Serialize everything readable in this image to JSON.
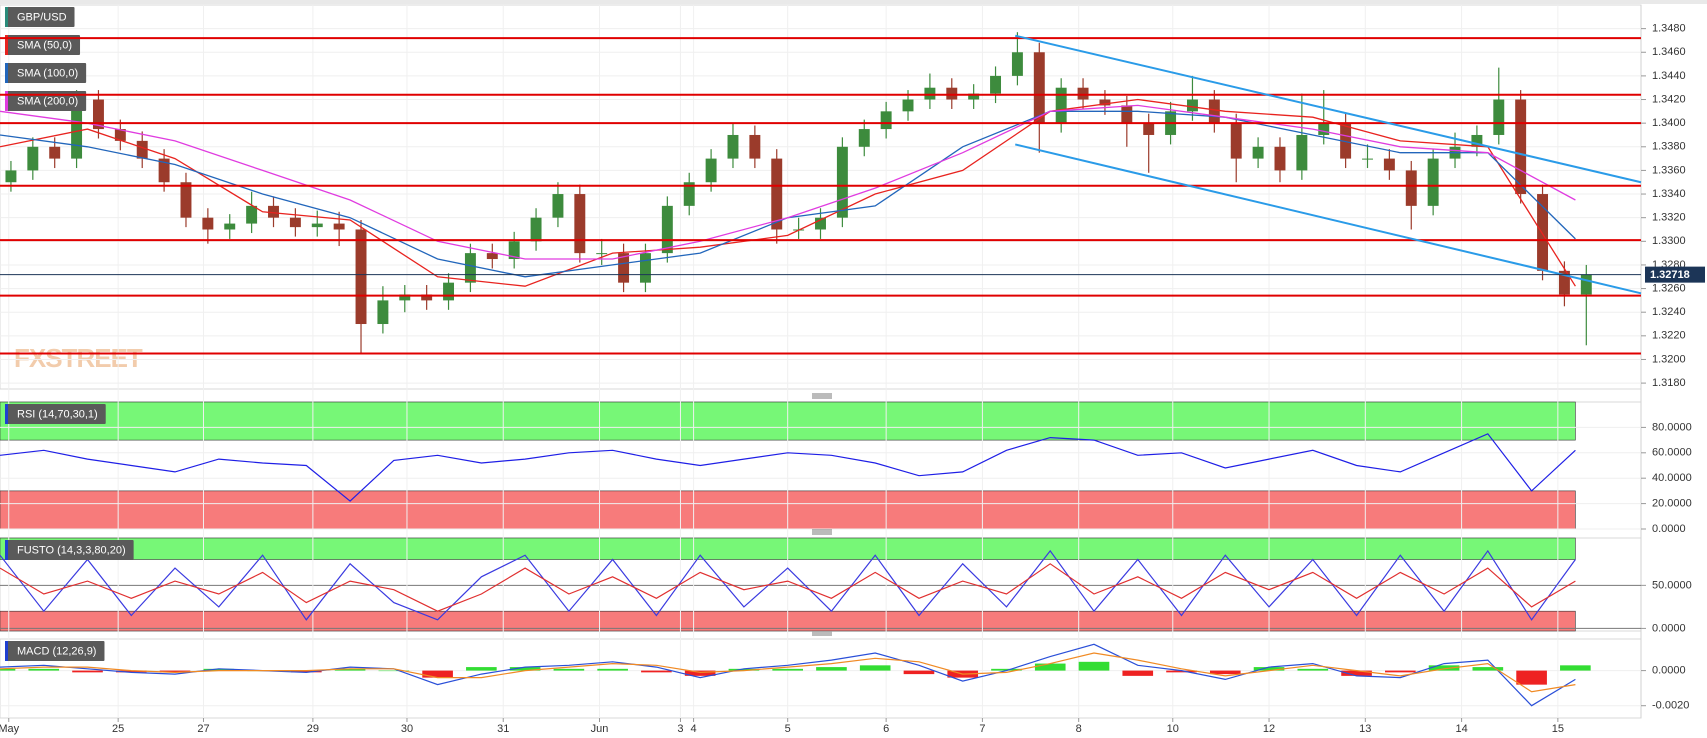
{
  "chart_data": [
    {
      "type": "candlestick",
      "title": "GBP/USD",
      "xlim": [
        0,
        75
      ],
      "ylim": [
        1.3175,
        1.35
      ],
      "yticks": [
        {
          "value": 1.318,
          "label": "1.3180"
        },
        {
          "value": 1.32,
          "label": "1.3200"
        },
        {
          "value": 1.322,
          "label": "1.3220"
        },
        {
          "value": 1.324,
          "label": "1.3240"
        },
        {
          "value": 1.326,
          "label": "1.3260"
        },
        {
          "value": 1.328,
          "label": "1.3280"
        },
        {
          "value": 1.33,
          "label": "1.3300"
        },
        {
          "value": 1.332,
          "label": "1.3320"
        },
        {
          "value": 1.334,
          "label": "1.3340"
        },
        {
          "value": 1.336,
          "label": "1.3360"
        },
        {
          "value": 1.338,
          "label": "1.3380"
        },
        {
          "value": 1.34,
          "label": "1.3400"
        },
        {
          "value": 1.342,
          "label": "1.3420"
        },
        {
          "value": 1.344,
          "label": "1.3440"
        },
        {
          "value": 1.346,
          "label": "1.3460"
        },
        {
          "value": 1.348,
          "label": "1.3480"
        }
      ],
      "up_color": "#3d8b3d",
      "down_color": "#9b3b2b",
      "ohlc": [
        [
          1.335,
          1.3368,
          1.3342,
          1.336
        ],
        [
          1.336,
          1.3388,
          1.3352,
          1.338
        ],
        [
          1.338,
          1.3388,
          1.3362,
          1.337
        ],
        [
          1.337,
          1.3428,
          1.3362,
          1.342
        ],
        [
          1.342,
          1.3428,
          1.3387,
          1.3395
        ],
        [
          1.3395,
          1.3403,
          1.3377,
          1.3385
        ],
        [
          1.3385,
          1.3393,
          1.3362,
          1.337
        ],
        [
          1.337,
          1.3378,
          1.3342,
          1.335
        ],
        [
          1.335,
          1.3358,
          1.3312,
          1.332
        ],
        [
          1.332,
          1.3328,
          1.3298,
          1.331
        ],
        [
          1.331,
          1.3323,
          1.3302,
          1.3315
        ],
        [
          1.3315,
          1.3342,
          1.3307,
          1.333
        ],
        [
          1.333,
          1.3338,
          1.3312,
          1.332
        ],
        [
          1.332,
          1.3328,
          1.3304,
          1.3312
        ],
        [
          1.3312,
          1.3326,
          1.3304,
          1.3315
        ],
        [
          1.3315,
          1.3325,
          1.3296,
          1.331
        ],
        [
          1.331,
          1.3318,
          1.3205,
          1.323
        ],
        [
          1.323,
          1.3262,
          1.3222,
          1.325
        ],
        [
          1.325,
          1.3263,
          1.324,
          1.3255
        ],
        [
          1.3255,
          1.3263,
          1.3242,
          1.325
        ],
        [
          1.325,
          1.3273,
          1.3242,
          1.3265
        ],
        [
          1.3265,
          1.3298,
          1.3257,
          1.329
        ],
        [
          1.329,
          1.3298,
          1.3277,
          1.3285
        ],
        [
          1.3285,
          1.3308,
          1.3277,
          1.33
        ],
        [
          1.33,
          1.3328,
          1.3292,
          1.332
        ],
        [
          1.332,
          1.335,
          1.3312,
          1.334
        ],
        [
          1.334,
          1.3348,
          1.3282,
          1.329
        ],
        [
          1.329,
          1.3302,
          1.328,
          1.329
        ],
        [
          1.329,
          1.3298,
          1.3257,
          1.3265
        ],
        [
          1.3265,
          1.3298,
          1.3257,
          1.329
        ],
        [
          1.329,
          1.3338,
          1.3282,
          1.333
        ],
        [
          1.333,
          1.3358,
          1.3322,
          1.335
        ],
        [
          1.335,
          1.3378,
          1.3342,
          1.337
        ],
        [
          1.337,
          1.34,
          1.3362,
          1.339
        ],
        [
          1.339,
          1.3398,
          1.3362,
          1.337
        ],
        [
          1.337,
          1.3378,
          1.3298,
          1.331
        ],
        [
          1.331,
          1.332,
          1.3302,
          1.331
        ],
        [
          1.331,
          1.3328,
          1.3302,
          1.332
        ],
        [
          1.332,
          1.3388,
          1.3312,
          1.338
        ],
        [
          1.338,
          1.3403,
          1.3372,
          1.3395
        ],
        [
          1.3395,
          1.3418,
          1.3387,
          1.341
        ],
        [
          1.341,
          1.3428,
          1.3402,
          1.342
        ],
        [
          1.342,
          1.3442,
          1.3412,
          1.343
        ],
        [
          1.343,
          1.3438,
          1.3412,
          1.342
        ],
        [
          1.342,
          1.3433,
          1.3412,
          1.3425
        ],
        [
          1.3425,
          1.3448,
          1.3417,
          1.344
        ],
        [
          1.344,
          1.3477,
          1.3432,
          1.346
        ],
        [
          1.346,
          1.3468,
          1.3375,
          1.34
        ],
        [
          1.34,
          1.3438,
          1.3392,
          1.343
        ],
        [
          1.343,
          1.3438,
          1.3412,
          1.342
        ],
        [
          1.342,
          1.3428,
          1.3407,
          1.3415
        ],
        [
          1.3415,
          1.3423,
          1.338,
          1.34
        ],
        [
          1.34,
          1.3408,
          1.3358,
          1.339
        ],
        [
          1.339,
          1.3418,
          1.3382,
          1.341
        ],
        [
          1.341,
          1.344,
          1.3402,
          1.342
        ],
        [
          1.342,
          1.3428,
          1.3392,
          1.34
        ],
        [
          1.34,
          1.3408,
          1.335,
          1.337
        ],
        [
          1.337,
          1.3388,
          1.3362,
          1.338
        ],
        [
          1.338,
          1.3388,
          1.335,
          1.336
        ],
        [
          1.336,
          1.3425,
          1.3352,
          1.339
        ],
        [
          1.339,
          1.3428,
          1.3382,
          1.34
        ],
        [
          1.34,
          1.3408,
          1.3362,
          1.337
        ],
        [
          1.337,
          1.3382,
          1.3362,
          1.337
        ],
        [
          1.337,
          1.3378,
          1.3352,
          1.336
        ],
        [
          1.336,
          1.3368,
          1.331,
          1.333
        ],
        [
          1.333,
          1.3378,
          1.3322,
          1.337
        ],
        [
          1.337,
          1.3392,
          1.3362,
          1.338
        ],
        [
          1.338,
          1.3398,
          1.3372,
          1.339
        ],
        [
          1.339,
          1.3447,
          1.3382,
          1.342
        ],
        [
          1.342,
          1.3428,
          1.3332,
          1.334
        ],
        [
          1.334,
          1.3348,
          1.3267,
          1.3275
        ],
        [
          1.3275,
          1.3283,
          1.3245,
          1.3255
        ],
        [
          1.3255,
          1.328,
          1.3212,
          1.3272
        ]
      ],
      "series": [
        {
          "name": "SMA (50,0)",
          "color": "#e8231f",
          "x": [
            0,
            4,
            8,
            12,
            16,
            20,
            24,
            28,
            32,
            36,
            40,
            44,
            48,
            52,
            56,
            60,
            64,
            68,
            72
          ],
          "values": [
            1.338,
            1.3395,
            1.337,
            1.3325,
            1.3318,
            1.327,
            1.3262,
            1.329,
            1.3295,
            1.3305,
            1.334,
            1.336,
            1.341,
            1.342,
            1.341,
            1.3405,
            1.3385,
            1.338,
            1.3262
          ]
        },
        {
          "name": "SMA (100,0)",
          "color": "#2266bb",
          "x": [
            0,
            4,
            8,
            12,
            16,
            20,
            24,
            28,
            32,
            36,
            40,
            44,
            48,
            52,
            56,
            60,
            64,
            68,
            72
          ],
          "values": [
            1.339,
            1.338,
            1.3365,
            1.334,
            1.332,
            1.3285,
            1.327,
            1.328,
            1.329,
            1.332,
            1.333,
            1.338,
            1.341,
            1.341,
            1.3405,
            1.339,
            1.3375,
            1.3375,
            1.3302
          ]
        },
        {
          "name": "SMA (200,0)",
          "color": "#e03ce0",
          "x": [
            0,
            4,
            8,
            12,
            16,
            20,
            24,
            28,
            32,
            36,
            40,
            44,
            48,
            52,
            56,
            60,
            64,
            68,
            72
          ],
          "values": [
            1.341,
            1.34,
            1.3385,
            1.336,
            1.3335,
            1.33,
            1.3285,
            1.3285,
            1.33,
            1.332,
            1.3345,
            1.3375,
            1.341,
            1.3415,
            1.3405,
            1.3395,
            1.338,
            1.3375,
            1.3335
          ]
        }
      ],
      "levels": [
        1.3472,
        1.3424,
        1.34,
        1.3347,
        1.3301,
        1.3254,
        1.3205
      ],
      "levels_color": "#e00000",
      "trendlines": [
        {
          "x": [
            46.4,
            75
          ],
          "values": [
            1.3474,
            1.335
          ]
        },
        {
          "x": [
            46.4,
            75
          ],
          "values": [
            1.3382,
            1.3256
          ]
        }
      ],
      "trendline_color": "#2a9be8",
      "last_price": 1.32718,
      "last_price_color": "#1c3557",
      "watermark": "FXSTREET"
    },
    {
      "type": "line",
      "title": "RSI (14,70,30,1)",
      "xlim": [
        0,
        75
      ],
      "ylim": [
        0,
        100
      ],
      "yticks": [
        {
          "value": 0,
          "label": "0.0000"
        },
        {
          "value": 20,
          "label": "20.0000"
        },
        {
          "value": 40,
          "label": "40.0000"
        },
        {
          "value": 60,
          "label": "60.0000"
        },
        {
          "value": 80,
          "label": "80.0000"
        }
      ],
      "zones": [
        70,
        30
      ],
      "zone_colors": [
        "#77f777",
        "#f77b7b"
      ],
      "x": [
        0,
        2,
        4,
        6,
        8,
        10,
        12,
        14,
        16,
        18,
        20,
        22,
        24,
        26,
        28,
        30,
        32,
        34,
        36,
        38,
        40,
        42,
        44,
        46,
        48,
        50,
        52,
        54,
        56,
        58,
        60,
        62,
        64,
        66,
        68,
        70,
        72
      ],
      "series": [
        {
          "color": "#1f1fe6",
          "values": [
            58,
            62,
            55,
            50,
            45,
            55,
            52,
            50,
            22,
            54,
            58,
            52,
            55,
            60,
            62,
            55,
            50,
            55,
            60,
            58,
            52,
            42,
            45,
            62,
            72,
            70,
            58,
            60,
            48,
            55,
            62,
            50,
            45,
            60,
            75,
            30,
            62
          ]
        }
      ]
    },
    {
      "type": "line",
      "title": "FUSTO (14,3,3,80,20)",
      "xlim": [
        0,
        75
      ],
      "ylim": [
        -3,
        105
      ],
      "yticks": [
        {
          "value": 0,
          "label": "0.0000"
        },
        {
          "value": 50,
          "label": "50.0000"
        }
      ],
      "zones": [
        80,
        20
      ],
      "zone_colors": [
        "#77f777",
        "#f77b7b"
      ],
      "x": [
        0,
        2,
        4,
        6,
        8,
        10,
        12,
        14,
        16,
        18,
        20,
        22,
        24,
        26,
        28,
        30,
        32,
        34,
        36,
        38,
        40,
        42,
        44,
        46,
        48,
        50,
        52,
        54,
        56,
        58,
        60,
        62,
        64,
        66,
        68,
        70,
        72
      ],
      "series": [
        {
          "color": "#3a3ae0",
          "values": [
            85,
            20,
            80,
            15,
            70,
            25,
            85,
            10,
            75,
            30,
            10,
            60,
            85,
            20,
            80,
            15,
            85,
            25,
            70,
            20,
            85,
            15,
            75,
            25,
            90,
            20,
            80,
            15,
            85,
            25,
            80,
            15,
            85,
            20,
            90,
            10,
            80
          ]
        },
        {
          "color": "#e03030",
          "values": [
            70,
            40,
            55,
            35,
            55,
            40,
            65,
            30,
            55,
            45,
            20,
            40,
            70,
            40,
            60,
            35,
            65,
            45,
            55,
            35,
            65,
            35,
            55,
            40,
            75,
            40,
            60,
            35,
            65,
            45,
            65,
            35,
            65,
            40,
            70,
            25,
            55
          ]
        }
      ]
    },
    {
      "type": "macd",
      "title": "MACD (12,26,9)",
      "xlim": [
        0,
        75
      ],
      "ylim": [
        -0.0027,
        0.0018
      ],
      "yticks": [
        {
          "value": -0.002,
          "label": "-0.0020"
        },
        {
          "value": 0,
          "label": "0.0000"
        }
      ],
      "xticks": [
        {
          "value": 0.4,
          "label": "May"
        },
        {
          "value": 5.4,
          "label": "25"
        },
        {
          "value": 9.3,
          "label": "27"
        },
        {
          "value": 14.3,
          "label": "29"
        },
        {
          "value": 18.6,
          "label": "30"
        },
        {
          "value": 23,
          "label": "31"
        },
        {
          "value": 27.4,
          "label": "Jun"
        },
        {
          "value": 31.1,
          "label": "3"
        },
        {
          "value": 31.7,
          "label": "4"
        },
        {
          "value": 36,
          "label": "5"
        },
        {
          "value": 40.5,
          "label": "6"
        },
        {
          "value": 44.9,
          "label": "7"
        },
        {
          "value": 49.3,
          "label": "8"
        },
        {
          "value": 53.6,
          "label": "10"
        },
        {
          "value": 58,
          "label": "12"
        },
        {
          "value": 62.4,
          "label": "13"
        },
        {
          "value": 66.8,
          "label": "14"
        },
        {
          "value": 71.2,
          "label": "15"
        }
      ],
      "x": [
        0,
        2,
        4,
        6,
        8,
        10,
        12,
        14,
        16,
        18,
        20,
        22,
        24,
        26,
        28,
        30,
        32,
        34,
        36,
        38,
        40,
        42,
        44,
        46,
        48,
        50,
        52,
        54,
        56,
        58,
        60,
        62,
        64,
        66,
        68,
        70,
        72
      ],
      "series": [
        {
          "color": "#2a4fd8",
          "values": [
            0.0002,
            0.0003,
            0.0001,
            -0.0001,
            -0.0002,
            0.0001,
            0.0,
            -0.0001,
            0.0002,
            0.0001,
            -0.0008,
            -0.0002,
            0.0002,
            0.0003,
            0.0005,
            0.0002,
            -0.0004,
            0.0001,
            0.0003,
            0.0006,
            0.001,
            0.0003,
            -0.0006,
            0.0,
            0.0008,
            0.0015,
            0.0003,
            0.0,
            -0.0005,
            0.0002,
            0.0004,
            -0.0003,
            -0.0004,
            0.0004,
            0.0006,
            -0.002,
            -0.0005
          ]
        },
        {
          "color": "#f08a24",
          "values": [
            0.0001,
            0.0002,
            0.0002,
            0.0,
            -0.0001,
            0.0,
            0.0,
            0.0,
            0.0001,
            0.0001,
            -0.0004,
            -0.0004,
            0.0,
            0.0002,
            0.0004,
            0.0003,
            -0.0001,
            0.0,
            0.0002,
            0.0004,
            0.0007,
            0.0005,
            -0.0002,
            -0.0001,
            0.0004,
            0.001,
            0.0006,
            0.0001,
            -0.0003,
            0.0,
            0.0003,
            0.0,
            -0.0003,
            0.0001,
            0.0004,
            -0.0012,
            -0.0008
          ]
        }
      ],
      "histogram": [
        0.0001,
        0.0001,
        -0.0001,
        -0.0001,
        -0.0001,
        0.0001,
        0.0,
        -0.0001,
        0.0001,
        0.0,
        -0.0004,
        0.0002,
        0.0002,
        0.0001,
        0.0001,
        -0.0001,
        -0.0003,
        0.0001,
        0.0001,
        0.0002,
        0.0003,
        -0.0002,
        -0.0004,
        0.0001,
        0.0004,
        0.0005,
        -0.0003,
        -0.0001,
        -0.0002,
        0.0002,
        0.0001,
        -0.0003,
        -0.0001,
        0.0003,
        0.0002,
        -0.0008,
        0.0003
      ],
      "histogram_colors": [
        "#33dd33",
        "#ee2222"
      ]
    }
  ]
}
